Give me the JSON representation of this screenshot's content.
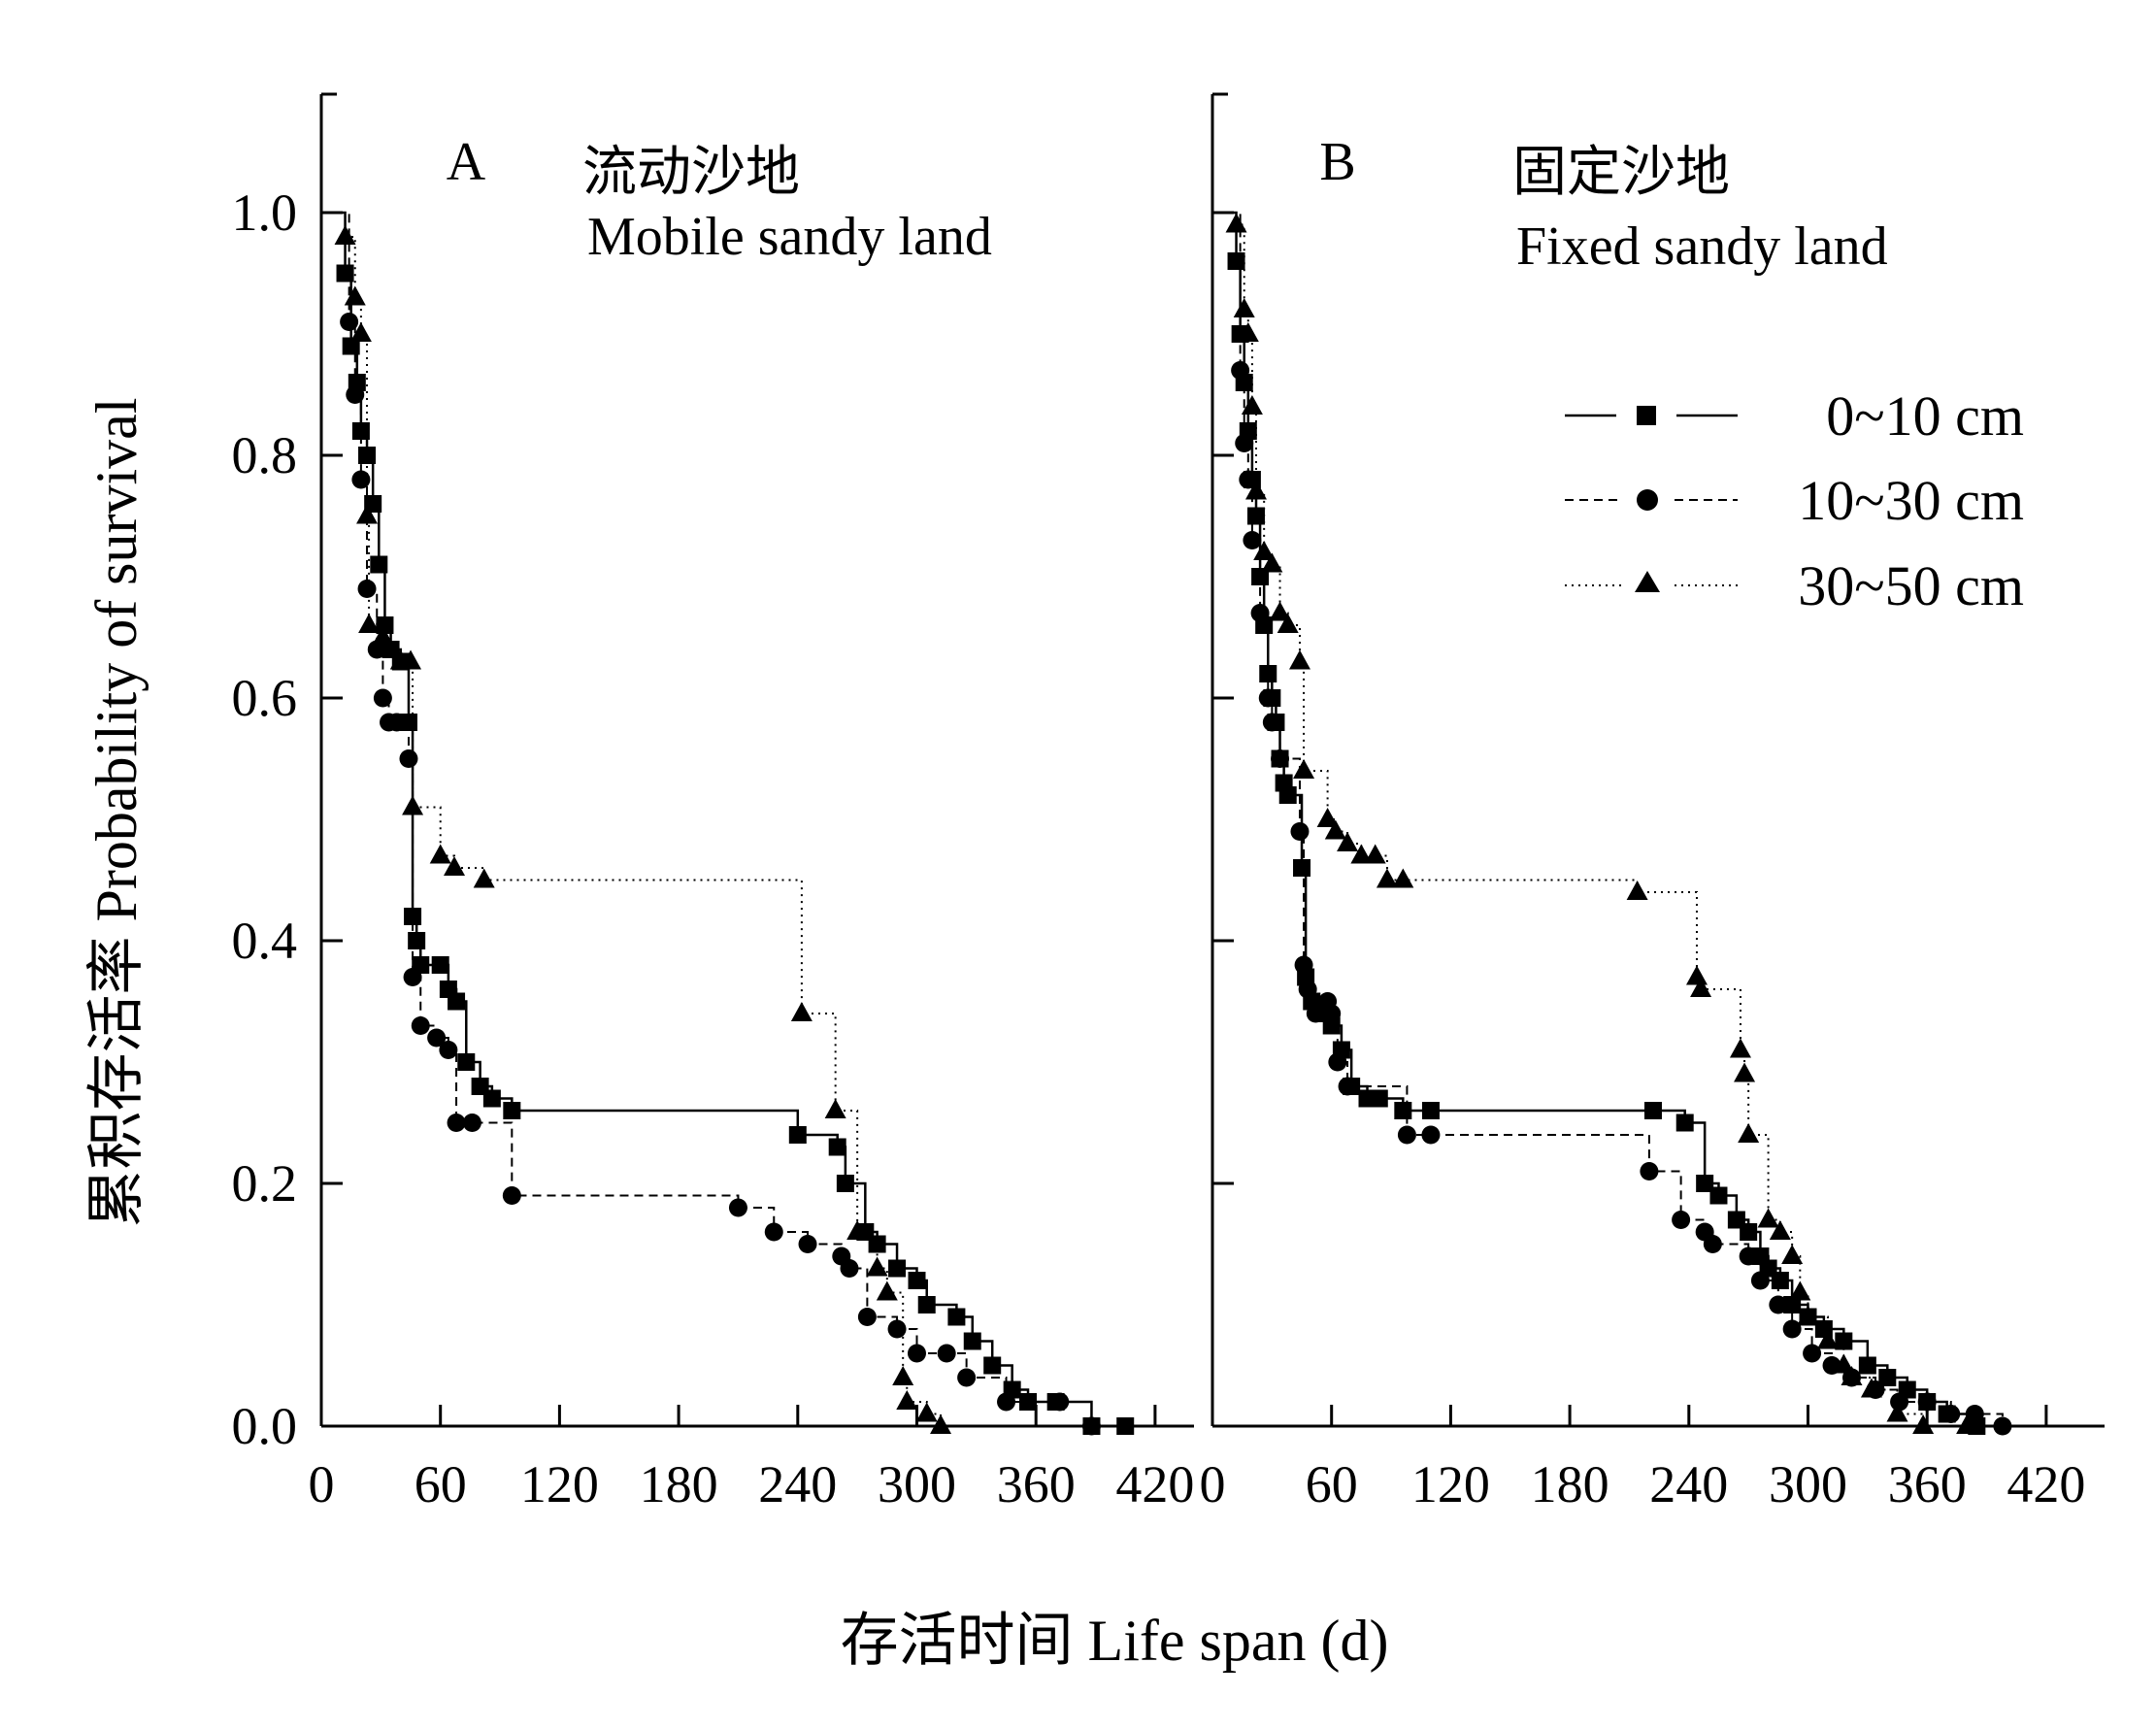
{
  "chart_data": [
    {
      "type": "line",
      "step": true,
      "panel": "A",
      "title_cn": "流动沙地",
      "title_en": "Mobile sandy land",
      "xlim": [
        0,
        450
      ],
      "ylim": [
        0,
        1.1
      ],
      "xticks": [
        0,
        60,
        120,
        180,
        240,
        300,
        360,
        420
      ],
      "yticks": [
        0.0,
        0.2,
        0.4,
        0.6,
        0.8,
        1.0
      ],
      "series": [
        {
          "name": "0~10 cm",
          "marker": "square",
          "line": "solid",
          "points": [
            [
              0,
              1.0
            ],
            [
              12,
              0.95
            ],
            [
              15,
              0.89
            ],
            [
              18,
              0.86
            ],
            [
              20,
              0.82
            ],
            [
              23,
              0.8
            ],
            [
              26,
              0.76
            ],
            [
              29,
              0.71
            ],
            [
              32,
              0.66
            ],
            [
              35,
              0.64
            ],
            [
              40,
              0.63
            ],
            [
              44,
              0.58
            ],
            [
              46,
              0.42
            ],
            [
              48,
              0.4
            ],
            [
              50,
              0.38
            ],
            [
              60,
              0.38
            ],
            [
              64,
              0.36
            ],
            [
              68,
              0.35
            ],
            [
              73,
              0.3
            ],
            [
              80,
              0.28
            ],
            [
              86,
              0.27
            ],
            [
              96,
              0.26
            ],
            [
              240,
              0.24
            ],
            [
              260,
              0.23
            ],
            [
              264,
              0.2
            ],
            [
              274,
              0.16
            ],
            [
              280,
              0.15
            ],
            [
              290,
              0.13
            ],
            [
              300,
              0.12
            ],
            [
              305,
              0.1
            ],
            [
              320,
              0.09
            ],
            [
              328,
              0.07
            ],
            [
              338,
              0.05
            ],
            [
              348,
              0.03
            ],
            [
              356,
              0.02
            ],
            [
              370,
              0.02
            ],
            [
              388,
              0.0
            ],
            [
              405,
              0.0
            ]
          ]
        },
        {
          "name": "10~30 cm",
          "marker": "circle",
          "line": "dashed",
          "points": [
            [
              0,
              1.0
            ],
            [
              14,
              0.91
            ],
            [
              17,
              0.85
            ],
            [
              20,
              0.78
            ],
            [
              23,
              0.69
            ],
            [
              28,
              0.64
            ],
            [
              31,
              0.6
            ],
            [
              34,
              0.58
            ],
            [
              38,
              0.58
            ],
            [
              44,
              0.55
            ],
            [
              46,
              0.37
            ],
            [
              50,
              0.33
            ],
            [
              58,
              0.32
            ],
            [
              64,
              0.31
            ],
            [
              68,
              0.25
            ],
            [
              76,
              0.25
            ],
            [
              96,
              0.19
            ],
            [
              210,
              0.18
            ],
            [
              228,
              0.16
            ],
            [
              245,
              0.15
            ],
            [
              262,
              0.14
            ],
            [
              266,
              0.13
            ],
            [
              275,
              0.09
            ],
            [
              290,
              0.08
            ],
            [
              300,
              0.06
            ],
            [
              315,
              0.06
            ],
            [
              325,
              0.04
            ],
            [
              345,
              0.02
            ],
            [
              372,
              0.02
            ],
            [
              388,
              0.0
            ]
          ]
        },
        {
          "name": "30~50 cm",
          "marker": "triangle",
          "line": "dotted",
          "points": [
            [
              0,
              1.0
            ],
            [
              12,
              0.98
            ],
            [
              17,
              0.93
            ],
            [
              20,
              0.9
            ],
            [
              23,
              0.75
            ],
            [
              24,
              0.66
            ],
            [
              31,
              0.65
            ],
            [
              33,
              0.64
            ],
            [
              40,
              0.63
            ],
            [
              45,
              0.63
            ],
            [
              46,
              0.51
            ],
            [
              60,
              0.47
            ],
            [
              67,
              0.46
            ],
            [
              82,
              0.45
            ],
            [
              242,
              0.34
            ],
            [
              259,
              0.26
            ],
            [
              270,
              0.16
            ],
            [
              280,
              0.13
            ],
            [
              285,
              0.11
            ],
            [
              293,
              0.04
            ],
            [
              295,
              0.02
            ],
            [
              305,
              0.01
            ],
            [
              312,
              0.0
            ]
          ]
        }
      ]
    },
    {
      "type": "line",
      "step": true,
      "panel": "B",
      "title_cn": "固定沙地",
      "title_en": "Fixed sandy land",
      "xlim": [
        0,
        450
      ],
      "ylim": [
        0,
        1.1
      ],
      "xticks": [
        0,
        60,
        120,
        180,
        240,
        300,
        360,
        420
      ],
      "yticks": [
        0.0,
        0.2,
        0.4,
        0.6,
        0.8,
        1.0
      ],
      "series": [
        {
          "name": "0~10 cm",
          "marker": "square",
          "line": "solid",
          "points": [
            [
              0,
              1.0
            ],
            [
              12,
              0.96
            ],
            [
              14,
              0.9
            ],
            [
              16,
              0.86
            ],
            [
              18,
              0.82
            ],
            [
              20,
              0.78
            ],
            [
              22,
              0.75
            ],
            [
              24,
              0.7
            ],
            [
              26,
              0.66
            ],
            [
              28,
              0.62
            ],
            [
              30,
              0.6
            ],
            [
              32,
              0.58
            ],
            [
              34,
              0.55
            ],
            [
              36,
              0.53
            ],
            [
              38,
              0.52
            ],
            [
              45,
              0.46
            ],
            [
              47,
              0.37
            ],
            [
              50,
              0.35
            ],
            [
              55,
              0.34
            ],
            [
              60,
              0.33
            ],
            [
              65,
              0.31
            ],
            [
              70,
              0.28
            ],
            [
              78,
              0.27
            ],
            [
              84,
              0.27
            ],
            [
              96,
              0.26
            ],
            [
              110,
              0.26
            ],
            [
              222,
              0.26
            ],
            [
              238,
              0.25
            ],
            [
              248,
              0.2
            ],
            [
              255,
              0.19
            ],
            [
              264,
              0.17
            ],
            [
              270,
              0.16
            ],
            [
              276,
              0.14
            ],
            [
              280,
              0.13
            ],
            [
              286,
              0.12
            ],
            [
              292,
              0.1
            ],
            [
              300,
              0.09
            ],
            [
              308,
              0.08
            ],
            [
              318,
              0.07
            ],
            [
              330,
              0.05
            ],
            [
              340,
              0.04
            ],
            [
              350,
              0.03
            ],
            [
              360,
              0.02
            ],
            [
              370,
              0.01
            ],
            [
              385,
              0.0
            ]
          ]
        },
        {
          "name": "10~30 cm",
          "marker": "circle",
          "line": "dashed",
          "points": [
            [
              0,
              1.0
            ],
            [
              14,
              0.87
            ],
            [
              16,
              0.81
            ],
            [
              18,
              0.78
            ],
            [
              20,
              0.73
            ],
            [
              24,
              0.67
            ],
            [
              28,
              0.6
            ],
            [
              30,
              0.58
            ],
            [
              34,
              0.55
            ],
            [
              44,
              0.49
            ],
            [
              46,
              0.38
            ],
            [
              48,
              0.36
            ],
            [
              52,
              0.34
            ],
            [
              58,
              0.35
            ],
            [
              60,
              0.34
            ],
            [
              63,
              0.3
            ],
            [
              68,
              0.28
            ],
            [
              98,
              0.24
            ],
            [
              110,
              0.24
            ],
            [
              220,
              0.21
            ],
            [
              236,
              0.17
            ],
            [
              248,
              0.16
            ],
            [
              252,
              0.15
            ],
            [
              270,
              0.14
            ],
            [
              276,
              0.12
            ],
            [
              285,
              0.1
            ],
            [
              292,
              0.08
            ],
            [
              302,
              0.06
            ],
            [
              312,
              0.05
            ],
            [
              322,
              0.04
            ],
            [
              334,
              0.03
            ],
            [
              346,
              0.02
            ],
            [
              360,
              0.02
            ],
            [
              372,
              0.01
            ],
            [
              384,
              0.01
            ],
            [
              398,
              0.0
            ]
          ]
        },
        {
          "name": "30~50 cm",
          "marker": "triangle",
          "line": "dotted",
          "points": [
            [
              0,
              1.0
            ],
            [
              12,
              0.99
            ],
            [
              16,
              0.92
            ],
            [
              18,
              0.9
            ],
            [
              20,
              0.84
            ],
            [
              22,
              0.77
            ],
            [
              26,
              0.72
            ],
            [
              30,
              0.71
            ],
            [
              34,
              0.67
            ],
            [
              38,
              0.66
            ],
            [
              44,
              0.63
            ],
            [
              46,
              0.54
            ],
            [
              58,
              0.5
            ],
            [
              62,
              0.49
            ],
            [
              68,
              0.48
            ],
            [
              75,
              0.47
            ],
            [
              82,
              0.47
            ],
            [
              88,
              0.45
            ],
            [
              96,
              0.45
            ],
            [
              214,
              0.44
            ],
            [
              244,
              0.37
            ],
            [
              246,
              0.36
            ],
            [
              266,
              0.31
            ],
            [
              268,
              0.29
            ],
            [
              270,
              0.24
            ],
            [
              280,
              0.17
            ],
            [
              286,
              0.16
            ],
            [
              292,
              0.14
            ],
            [
              296,
              0.11
            ],
            [
              300,
              0.09
            ],
            [
              310,
              0.07
            ],
            [
              318,
              0.05
            ],
            [
              322,
              0.04
            ],
            [
              332,
              0.03
            ],
            [
              345,
              0.01
            ],
            [
              358,
              0.0
            ],
            [
              380,
              0.0
            ]
          ]
        }
      ]
    }
  ],
  "labels": {
    "y_axis": "累积存活率  Probability of survival",
    "x_axis": "存活时间  Life span (d)"
  },
  "legend": {
    "placement": "upper-right of panel B",
    "items": [
      "0~10 cm",
      "10~30 cm",
      "30~50 cm"
    ]
  }
}
